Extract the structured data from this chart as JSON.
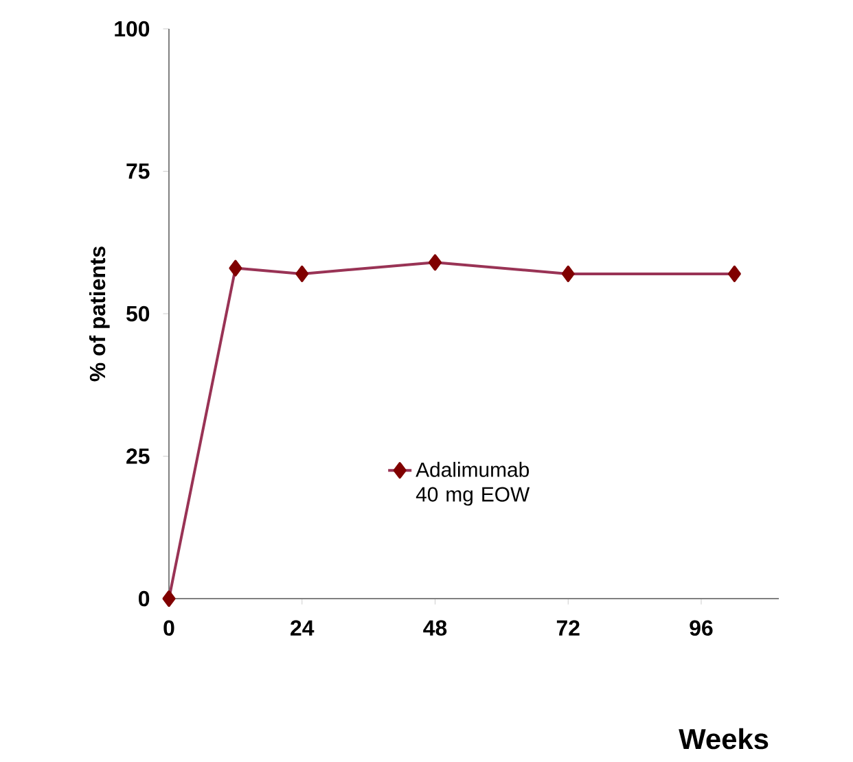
{
  "chart_data": {
    "type": "line",
    "xlabel": "Weeks",
    "ylabel": "% of patients",
    "x": [
      0,
      12,
      24,
      48,
      72,
      102
    ],
    "series": [
      {
        "name": "Adalimumab 40 mg EOW",
        "color": "#993355",
        "values": [
          0,
          58,
          57,
          59,
          57,
          57
        ]
      }
    ],
    "xlim": [
      0,
      110
    ],
    "xticks": [
      0,
      24,
      48,
      72,
      96
    ],
    "ylim": [
      0,
      100
    ],
    "yticks": [
      0,
      25,
      50,
      75,
      100
    ],
    "grid": false,
    "legend": "right",
    "marker": "diamond",
    "line_style": "solid"
  }
}
